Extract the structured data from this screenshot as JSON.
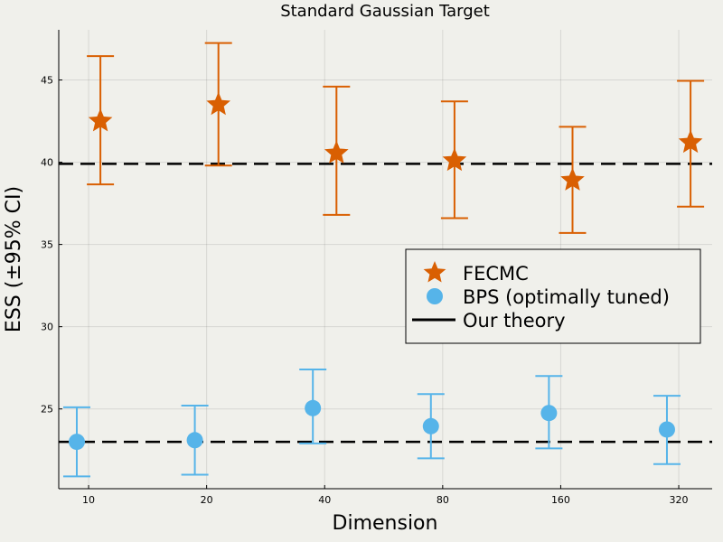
{
  "chart_data": {
    "type": "scatter",
    "title": "Standard Gaussian Target",
    "xlabel": "Dimension",
    "ylabel": "ESS (±95% CI)",
    "categories": [
      "10",
      "20",
      "40",
      "80",
      "160",
      "320"
    ],
    "ylim": [
      20.15,
      48.05
    ],
    "yticks": [
      25,
      30,
      35,
      40,
      45
    ],
    "grid": true,
    "legend_position": "center-right",
    "series": [
      {
        "name": "FECMC",
        "marker": "star",
        "color": "#d95f02",
        "offset": 0.1,
        "values": [
          42.5,
          43.5,
          40.55,
          40.1,
          38.9,
          41.2
        ],
        "lower": [
          38.65,
          39.8,
          36.8,
          36.6,
          35.7,
          37.3
        ],
        "upper": [
          46.45,
          47.25,
          44.6,
          43.7,
          42.15,
          44.95
        ]
      },
      {
        "name": "BPS (optimally tuned)",
        "marker": "circle",
        "color": "#56b4e9",
        "offset": -0.1,
        "values": [
          23.0,
          23.1,
          25.05,
          23.95,
          24.75,
          23.75
        ],
        "lower": [
          20.9,
          21.0,
          22.9,
          22.0,
          22.6,
          21.65
        ],
        "upper": [
          25.1,
          25.2,
          27.4,
          25.9,
          27.0,
          25.8
        ]
      }
    ],
    "reference_lines": {
      "name": "Our theory",
      "color": "#000000",
      "style": "dashed",
      "values": [
        39.9,
        23.0
      ]
    }
  }
}
